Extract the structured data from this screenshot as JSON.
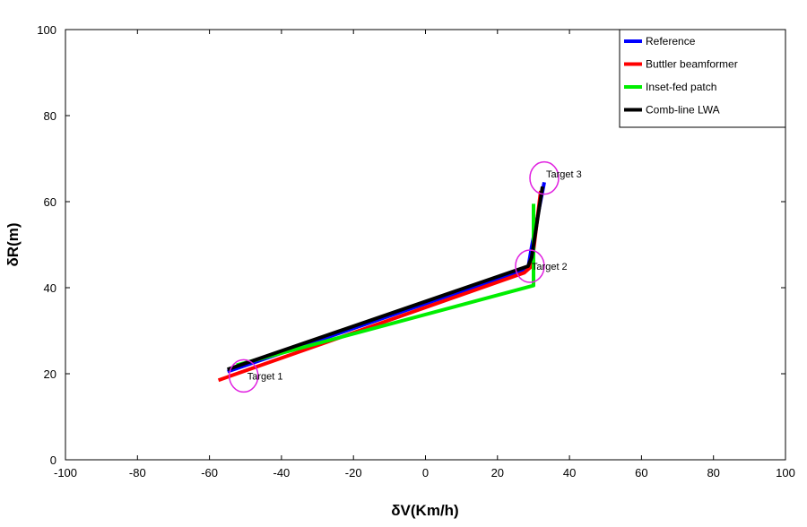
{
  "chart_data": {
    "type": "line",
    "xlabel": "δV(Km/h)",
    "ylabel": "δR(m)",
    "xlim": [
      -100,
      100
    ],
    "ylim": [
      0,
      100
    ],
    "xticks": [
      "-100",
      "-80",
      "-60",
      "-40",
      "-20",
      "0",
      "20",
      "40",
      "60",
      "80",
      "100"
    ],
    "yticks": [
      "0",
      "20",
      "40",
      "60",
      "80",
      "100"
    ],
    "grid": false,
    "legend_position": "top-right",
    "series": [
      {
        "name": "Reference",
        "color": "#0000ff",
        "points": [
          [
            -55,
            20.5
          ],
          [
            28.5,
            44.5
          ],
          [
            29.5,
            49.5
          ],
          [
            33,
            64.5
          ]
        ]
      },
      {
        "name": "Buttler beamformer",
        "color": "#ff0000",
        "points": [
          [
            -57.5,
            18.5
          ],
          [
            27.5,
            43.5
          ],
          [
            29.5,
            45
          ],
          [
            32,
            62.5
          ]
        ]
      },
      {
        "name": "Inset-fed patch",
        "color": "#00ee00",
        "points": [
          [
            -52.5,
            22
          ],
          [
            30,
            40.5
          ],
          [
            30,
            59.5
          ]
        ]
      },
      {
        "name": "Comb-line LWA",
        "color": "#000000",
        "points": [
          [
            -55,
            21
          ],
          [
            28.5,
            45
          ],
          [
            29.5,
            47
          ],
          [
            32.5,
            63.5
          ]
        ]
      }
    ],
    "annotations": [
      {
        "text": "Target 1",
        "x": -50,
        "y": 19.5,
        "circle_x": -50.5,
        "circle_y": 19.5
      },
      {
        "text": "Target 2",
        "x": 29,
        "y": 45,
        "circle_x": 29,
        "circle_y": 45
      },
      {
        "text": "Target 3",
        "x": 33,
        "y": 66.5,
        "circle_x": 33,
        "circle_y": 65.5
      }
    ],
    "annotation_color": "#e020e0"
  }
}
